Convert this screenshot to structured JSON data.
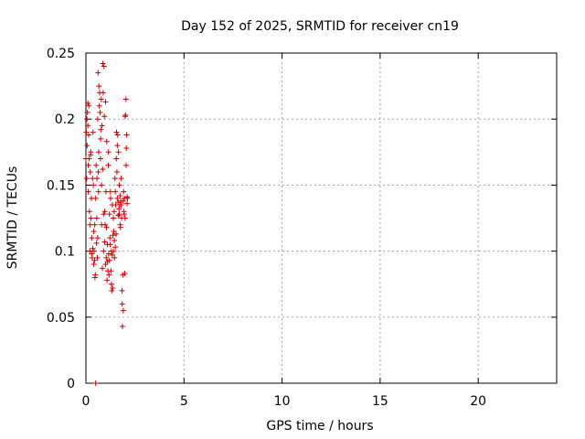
{
  "chart_data": {
    "type": "scatter",
    "title": "Day 152 of 2025, SRMTID for receiver cn19",
    "xlabel": "GPS time / hours",
    "ylabel": "SRMTID / TECUs",
    "xlim": [
      0,
      24
    ],
    "ylim": [
      0,
      0.25
    ],
    "x_ticks": [
      "0",
      "5",
      "10",
      "15",
      "20"
    ],
    "y_ticks": [
      "0",
      "0.05",
      "0.1",
      "0.15",
      "0.2",
      "0.25"
    ],
    "grid": true,
    "marker": "+",
    "color": "#cc0000",
    "points": [
      [
        0.0,
        0.17
      ],
      [
        0.02,
        0.19
      ],
      [
        0.04,
        0.155
      ],
      [
        0.05,
        0.2
      ],
      [
        0.06,
        0.18
      ],
      [
        0.08,
        0.205
      ],
      [
        0.1,
        0.212
      ],
      [
        0.1,
        0.195
      ],
      [
        0.12,
        0.165
      ],
      [
        0.12,
        0.145
      ],
      [
        0.14,
        0.188
      ],
      [
        0.15,
        0.21
      ],
      [
        0.16,
        0.17
      ],
      [
        0.18,
        0.13
      ],
      [
        0.2,
        0.12
      ],
      [
        0.2,
        0.1
      ],
      [
        0.22,
        0.16
      ],
      [
        0.24,
        0.173
      ],
      [
        0.25,
        0.175
      ],
      [
        0.26,
        0.125
      ],
      [
        0.28,
        0.14
      ],
      [
        0.3,
        0.11
      ],
      [
        0.3,
        0.098
      ],
      [
        0.32,
        0.095
      ],
      [
        0.34,
        0.155
      ],
      [
        0.35,
        0.102
      ],
      [
        0.36,
        0.19
      ],
      [
        0.38,
        0.15
      ],
      [
        0.4,
        0.09
      ],
      [
        0.4,
        0.115
      ],
      [
        0.42,
        0.1
      ],
      [
        0.44,
        0.093
      ],
      [
        0.45,
        0.12
      ],
      [
        0.46,
        0.08
      ],
      [
        0.48,
        0.082
      ],
      [
        0.5,
        0.14
      ],
      [
        0.5,
        0.0
      ],
      [
        0.52,
        0.165
      ],
      [
        0.54,
        0.106
      ],
      [
        0.55,
        0.125
      ],
      [
        0.56,
        0.155
      ],
      [
        0.58,
        0.095
      ],
      [
        0.6,
        0.2
      ],
      [
        0.6,
        0.11
      ],
      [
        0.62,
        0.235
      ],
      [
        0.63,
        0.16
      ],
      [
        0.64,
        0.145
      ],
      [
        0.65,
        0.175
      ],
      [
        0.66,
        0.225
      ],
      [
        0.68,
        0.21
      ],
      [
        0.7,
        0.22
      ],
      [
        0.72,
        0.205
      ],
      [
        0.74,
        0.17
      ],
      [
        0.75,
        0.185
      ],
      [
        0.76,
        0.192
      ],
      [
        0.78,
        0.215
      ],
      [
        0.8,
        0.12
      ],
      [
        0.8,
        0.15
      ],
      [
        0.82,
        0.195
      ],
      [
        0.84,
        0.087
      ],
      [
        0.85,
        0.162
      ],
      [
        0.86,
        0.242
      ],
      [
        0.88,
        0.22
      ],
      [
        0.9,
        0.1
      ],
      [
        0.9,
        0.128
      ],
      [
        0.92,
        0.24
      ],
      [
        0.94,
        0.202
      ],
      [
        0.95,
        0.107
      ],
      [
        0.96,
        0.13
      ],
      [
        0.98,
        0.12
      ],
      [
        1.0,
        0.09
      ],
      [
        1.0,
        0.213
      ],
      [
        1.02,
        0.145
      ],
      [
        1.04,
        0.095
      ],
      [
        1.05,
        0.118
      ],
      [
        1.06,
        0.183
      ],
      [
        1.08,
        0.078
      ],
      [
        1.1,
        0.092
      ],
      [
        1.1,
        0.105
      ],
      [
        1.12,
        0.085
      ],
      [
        1.14,
        0.165
      ],
      [
        1.15,
        0.175
      ],
      [
        1.16,
        0.098
      ],
      [
        1.18,
        0.082
      ],
      [
        1.2,
        0.128
      ],
      [
        1.2,
        0.093
      ],
      [
        1.22,
        0.11
      ],
      [
        1.24,
        0.105
      ],
      [
        1.25,
        0.145
      ],
      [
        1.26,
        0.14
      ],
      [
        1.28,
        0.085
      ],
      [
        1.3,
        0.1
      ],
      [
        1.3,
        0.075
      ],
      [
        1.32,
        0.07
      ],
      [
        1.34,
        0.097
      ],
      [
        1.35,
        0.135
      ],
      [
        1.36,
        0.072
      ],
      [
        1.38,
        0.112
      ],
      [
        1.4,
        0.1
      ],
      [
        1.4,
        0.125
      ],
      [
        1.42,
        0.115
      ],
      [
        1.44,
        0.13
      ],
      [
        1.45,
        0.108
      ],
      [
        1.46,
        0.095
      ],
      [
        1.48,
        0.155
      ],
      [
        1.5,
        0.103
      ],
      [
        1.5,
        0.145
      ],
      [
        1.52,
        0.135
      ],
      [
        1.54,
        0.113
      ],
      [
        1.55,
        0.17
      ],
      [
        1.56,
        0.19
      ],
      [
        1.58,
        0.16
      ],
      [
        1.6,
        0.18
      ],
      [
        1.6,
        0.14
      ],
      [
        1.62,
        0.188
      ],
      [
        1.64,
        0.137
      ],
      [
        1.65,
        0.127
      ],
      [
        1.66,
        0.175
      ],
      [
        1.68,
        0.132
      ],
      [
        1.7,
        0.15
      ],
      [
        1.7,
        0.128
      ],
      [
        1.72,
        0.135
      ],
      [
        1.74,
        0.142
      ],
      [
        1.75,
        0.12
      ],
      [
        1.76,
        0.118
      ],
      [
        1.78,
        0.138
      ],
      [
        1.8,
        0.155
      ],
      [
        1.8,
        0.135
      ],
      [
        1.82,
        0.125
      ],
      [
        1.84,
        0.07
      ],
      [
        1.85,
        0.06
      ],
      [
        1.86,
        0.043
      ],
      [
        1.88,
        0.082
      ],
      [
        1.9,
        0.055
      ],
      [
        1.9,
        0.138
      ],
      [
        1.92,
        0.145
      ],
      [
        1.94,
        0.13
      ],
      [
        1.95,
        0.128
      ],
      [
        1.96,
        0.14
      ],
      [
        1.98,
        0.083
      ],
      [
        2.0,
        0.125
      ],
      [
        2.0,
        0.202
      ],
      [
        2.02,
        0.203
      ],
      [
        2.04,
        0.215
      ],
      [
        2.05,
        0.165
      ],
      [
        2.06,
        0.178
      ],
      [
        2.08,
        0.188
      ],
      [
        2.1,
        0.141
      ],
      [
        2.1,
        0.136
      ],
      [
        2.12,
        0.14
      ]
    ]
  }
}
